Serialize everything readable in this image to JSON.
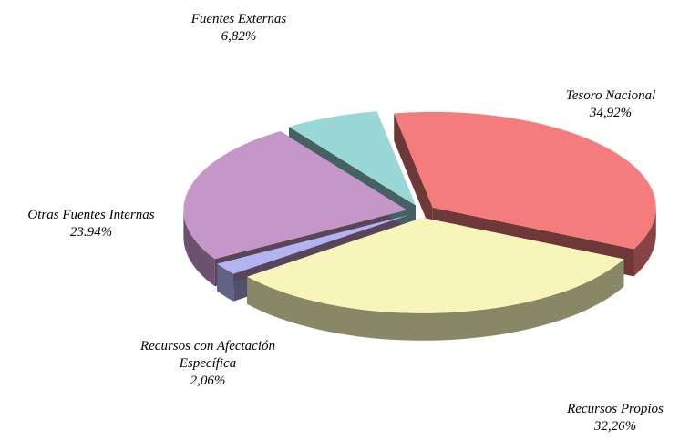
{
  "chart_data": {
    "type": "pie",
    "categories": [
      "Tesoro Nacional",
      "Recursos Propios",
      "Recursos con Afectación Específica",
      "Otras Fuentes Internas",
      "Fuentes Externas"
    ],
    "values": [
      34.92,
      32.26,
      2.06,
      23.94,
      6.82
    ],
    "value_labels": [
      "34,92%",
      "32,26%",
      "2,06%",
      "23.94%",
      "6,82%"
    ],
    "colors": [
      "#f47c7c",
      "#f7f5b9",
      "#b3b3f0",
      "#c596c8",
      "#9ad8d8"
    ]
  }
}
